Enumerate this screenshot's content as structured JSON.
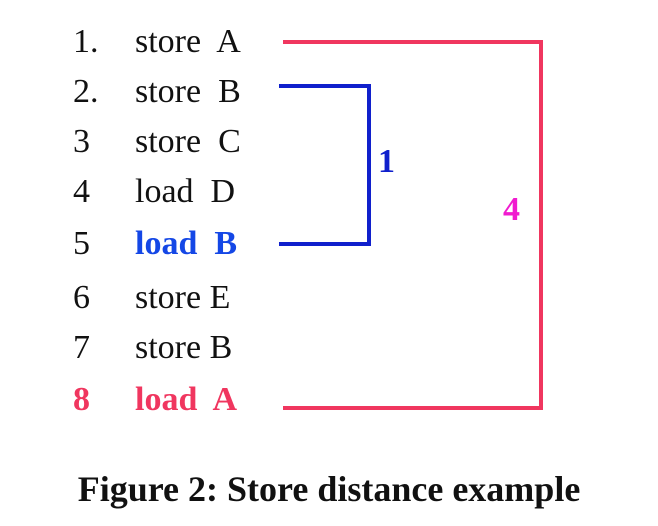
{
  "instructions": [
    {
      "num": "1.",
      "text": "store  A"
    },
    {
      "num": "2.",
      "text": "store  B"
    },
    {
      "num": "3",
      "text": "store  C"
    },
    {
      "num": "4",
      "text": "load  D"
    },
    {
      "num": "5",
      "text": "load  B"
    },
    {
      "num": "6",
      "text": "store E"
    },
    {
      "num": "7",
      "text": "store B"
    },
    {
      "num": "8",
      "text": "load  A"
    }
  ],
  "distances": {
    "blue_label": "1",
    "pink_label": "4"
  },
  "colors": {
    "text": "#111111",
    "blue_highlight": "#1447e6",
    "red_highlight": "#f0365f",
    "blue_bracket": "#1020cc",
    "red_bracket": "#f0365f",
    "pink_label": "#f01bcf"
  },
  "caption": "Figure 2: Store distance example"
}
